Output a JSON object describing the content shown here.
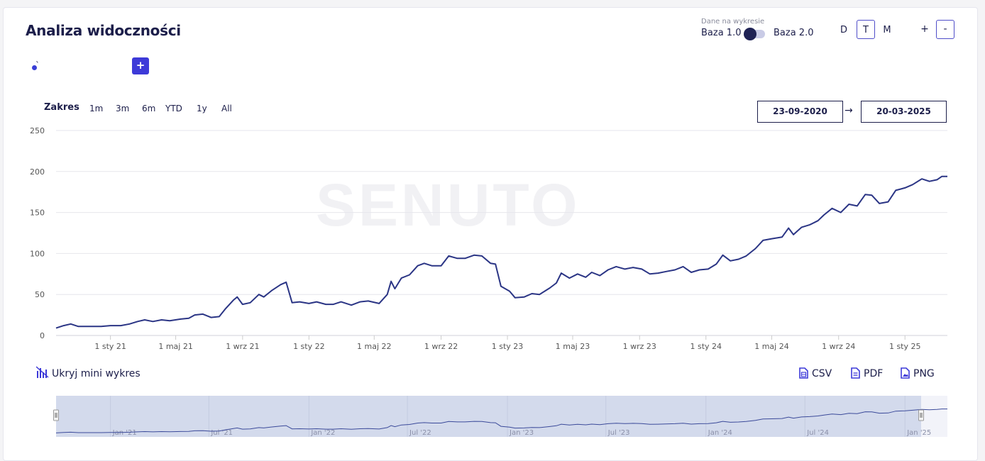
{
  "card": {
    "title": "Analiza widoczności",
    "toggle": {
      "caption": "Dane na wykresie",
      "left_label": "Baza 1.0",
      "right_label": "Baza 2.0"
    },
    "periods": [
      {
        "label": "D",
        "active": false
      },
      {
        "label": "T",
        "active": true
      },
      {
        "label": "M",
        "active": false
      }
    ],
    "zoom": {
      "plus": "+",
      "minus": "-"
    },
    "legend": {
      "series_label": "̀",
      "add_label": "+"
    },
    "range": {
      "label": "Zakres",
      "buttons": [
        "1m",
        "3m",
        "6m",
        "YTD",
        "1y",
        "All"
      ],
      "from": "23-09-2020",
      "arrow": "→",
      "to": "20-03-2025"
    },
    "watermark": "SENUTO",
    "footer": {
      "hide_mini": "Ukryj mini wykres",
      "exports": [
        "CSV",
        "PDF",
        "PNG"
      ]
    },
    "colors": {
      "line": "#2b3585",
      "accent": "#3d3ad8",
      "navigator_fill": "#d3daec"
    }
  },
  "chart_data": {
    "type": "line",
    "x_range": [
      "2020-09-23",
      "2025-03-20"
    ],
    "ylim": [
      0,
      250
    ],
    "yticks": [
      "0",
      "50",
      "100",
      "150",
      "200",
      "250"
    ],
    "xticks": [
      {
        "label": "1 sty 21",
        "date": "2021-01-01"
      },
      {
        "label": "1 maj 21",
        "date": "2021-05-01"
      },
      {
        "label": "1 wrz 21",
        "date": "2021-09-01"
      },
      {
        "label": "1 sty 22",
        "date": "2022-01-01"
      },
      {
        "label": "1 maj 22",
        "date": "2022-05-01"
      },
      {
        "label": "1 wrz 22",
        "date": "2022-09-01"
      },
      {
        "label": "1 sty 23",
        "date": "2023-01-01"
      },
      {
        "label": "1 maj 23",
        "date": "2023-05-01"
      },
      {
        "label": "1 wrz 23",
        "date": "2023-09-01"
      },
      {
        "label": "1 sty 24",
        "date": "2024-01-01"
      },
      {
        "label": "1 maj 24",
        "date": "2024-05-01"
      },
      {
        "label": "1 wrz 24",
        "date": "2024-09-01"
      },
      {
        "label": "1 sty 25",
        "date": "2025-01-01"
      }
    ],
    "navigator_ticks": [
      "Jan '21",
      "Jul '21",
      "Jan '22",
      "Jul '22",
      "Jan '23",
      "Jul '23",
      "Jan '24",
      "Jul '24",
      "Jan '25"
    ],
    "navigator_tick_dates": [
      "2021-01-01",
      "2021-07-01",
      "2022-01-01",
      "2022-07-01",
      "2023-01-01",
      "2023-07-01",
      "2024-01-01",
      "2024-07-01",
      "2025-01-01"
    ],
    "series": [
      {
        "points": [
          [
            "2020-09-23",
            9
          ],
          [
            "2020-10-07",
            12
          ],
          [
            "2020-10-20",
            14
          ],
          [
            "2020-11-03",
            11
          ],
          [
            "2020-11-24",
            11
          ],
          [
            "2020-12-15",
            11
          ],
          [
            "2021-01-01",
            12
          ],
          [
            "2021-01-20",
            12
          ],
          [
            "2021-02-05",
            14
          ],
          [
            "2021-02-20",
            17
          ],
          [
            "2021-03-05",
            19
          ],
          [
            "2021-03-20",
            17
          ],
          [
            "2021-04-05",
            19
          ],
          [
            "2021-04-20",
            18
          ],
          [
            "2021-05-10",
            20
          ],
          [
            "2021-05-25",
            21
          ],
          [
            "2021-06-05",
            25
          ],
          [
            "2021-06-20",
            26
          ],
          [
            "2021-07-05",
            22
          ],
          [
            "2021-07-20",
            23
          ],
          [
            "2021-08-01",
            33
          ],
          [
            "2021-08-15",
            43
          ],
          [
            "2021-08-22",
            47
          ],
          [
            "2021-09-01",
            38
          ],
          [
            "2021-09-15",
            40
          ],
          [
            "2021-10-01",
            50
          ],
          [
            "2021-10-10",
            47
          ],
          [
            "2021-10-25",
            55
          ],
          [
            "2021-11-10",
            62
          ],
          [
            "2021-11-20",
            65
          ],
          [
            "2021-12-01",
            40
          ],
          [
            "2021-12-15",
            41
          ],
          [
            "2022-01-01",
            39
          ],
          [
            "2022-01-15",
            41
          ],
          [
            "2022-02-01",
            38
          ],
          [
            "2022-02-15",
            38
          ],
          [
            "2022-03-01",
            41
          ],
          [
            "2022-03-20",
            37
          ],
          [
            "2022-04-05",
            41
          ],
          [
            "2022-04-20",
            42
          ],
          [
            "2022-05-10",
            39
          ],
          [
            "2022-05-25",
            50
          ],
          [
            "2022-06-01",
            66
          ],
          [
            "2022-06-08",
            57
          ],
          [
            "2022-06-20",
            70
          ],
          [
            "2022-07-05",
            74
          ],
          [
            "2022-07-20",
            85
          ],
          [
            "2022-08-01",
            88
          ],
          [
            "2022-08-15",
            85
          ],
          [
            "2022-09-01",
            85
          ],
          [
            "2022-09-15",
            97
          ],
          [
            "2022-10-01",
            94
          ],
          [
            "2022-10-15",
            94
          ],
          [
            "2022-11-01",
            98
          ],
          [
            "2022-11-15",
            97
          ],
          [
            "2022-12-01",
            88
          ],
          [
            "2022-12-10",
            87
          ],
          [
            "2022-12-20",
            60
          ],
          [
            "2023-01-05",
            54
          ],
          [
            "2023-01-15",
            46
          ],
          [
            "2023-02-01",
            47
          ],
          [
            "2023-02-15",
            51
          ],
          [
            "2023-03-01",
            50
          ],
          [
            "2023-03-20",
            58
          ],
          [
            "2023-04-01",
            64
          ],
          [
            "2023-04-10",
            76
          ],
          [
            "2023-04-25",
            70
          ],
          [
            "2023-05-10",
            75
          ],
          [
            "2023-05-25",
            71
          ],
          [
            "2023-06-05",
            77
          ],
          [
            "2023-06-20",
            73
          ],
          [
            "2023-07-05",
            80
          ],
          [
            "2023-07-20",
            84
          ],
          [
            "2023-08-05",
            81
          ],
          [
            "2023-08-20",
            83
          ],
          [
            "2023-09-05",
            81
          ],
          [
            "2023-09-20",
            75
          ],
          [
            "2023-10-05",
            76
          ],
          [
            "2023-10-20",
            78
          ],
          [
            "2023-11-05",
            80
          ],
          [
            "2023-11-20",
            84
          ],
          [
            "2023-12-05",
            77
          ],
          [
            "2023-12-20",
            80
          ],
          [
            "2024-01-05",
            81
          ],
          [
            "2024-01-20",
            87
          ],
          [
            "2024-02-01",
            98
          ],
          [
            "2024-02-15",
            91
          ],
          [
            "2024-03-01",
            93
          ],
          [
            "2024-03-15",
            97
          ],
          [
            "2024-04-01",
            106
          ],
          [
            "2024-04-15",
            116
          ],
          [
            "2024-05-01",
            118
          ],
          [
            "2024-05-20",
            120
          ],
          [
            "2024-06-01",
            131
          ],
          [
            "2024-06-10",
            123
          ],
          [
            "2024-06-25",
            132
          ],
          [
            "2024-07-10",
            135
          ],
          [
            "2024-07-25",
            140
          ],
          [
            "2024-08-05",
            147
          ],
          [
            "2024-08-20",
            155
          ],
          [
            "2024-09-05",
            150
          ],
          [
            "2024-09-20",
            160
          ],
          [
            "2024-10-05",
            158
          ],
          [
            "2024-10-20",
            172
          ],
          [
            "2024-11-01",
            171
          ],
          [
            "2024-11-15",
            161
          ],
          [
            "2024-12-01",
            163
          ],
          [
            "2024-12-15",
            177
          ],
          [
            "2025-01-01",
            180
          ],
          [
            "2025-01-15",
            184
          ],
          [
            "2025-02-01",
            191
          ],
          [
            "2025-02-15",
            188
          ],
          [
            "2025-03-01",
            190
          ],
          [
            "2025-03-10",
            194
          ],
          [
            "2025-03-20",
            194
          ]
        ]
      }
    ]
  }
}
